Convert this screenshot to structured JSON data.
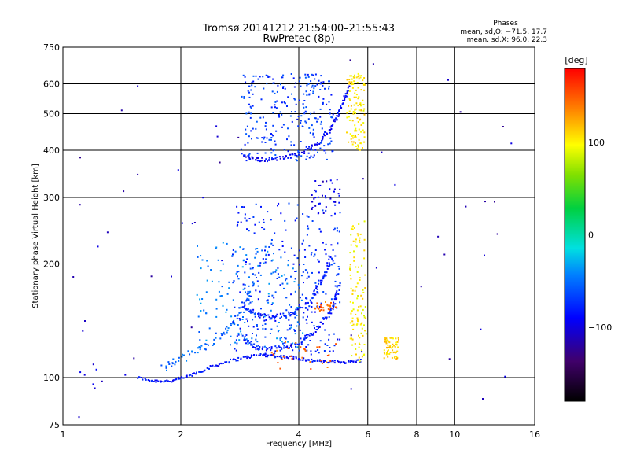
{
  "chart_data": {
    "type": "scatter",
    "title": "Tromsø 20141212 21:54:00–21:55:43",
    "subtitle": "RwPretec (8p)",
    "xlabel": "Frequency [MHz]",
    "ylabel": "Stationary phase Virtual Height [km]",
    "x_scale": "log",
    "y_scale": "log",
    "xlim": [
      1,
      16
    ],
    "ylim": [
      75,
      750
    ],
    "x_ticks": [
      1,
      2,
      4,
      6,
      8,
      10,
      16
    ],
    "y_ticks": [
      75,
      100,
      200,
      300,
      400,
      500,
      600,
      750
    ],
    "x_grid": [
      2,
      4,
      6,
      8,
      10
    ],
    "y_grid": [
      100,
      200,
      300,
      400,
      500,
      600
    ],
    "grid": true,
    "legend_title": "Phases",
    "legend_lines": [
      "mean, sd,O: −71.5, 17.7",
      "mean, sd,X:  96.0, 22.3"
    ],
    "colorbar": {
      "label": "[deg]",
      "range": [
        -180,
        180
      ],
      "ticks": [
        {
          "value": 100,
          "label": "100"
        },
        {
          "value": 0,
          "label": "0"
        },
        {
          "value": -100,
          "label": "−100"
        }
      ]
    },
    "traces": [
      {
        "kind": "curve",
        "phase": -85,
        "points": [
          [
            1.55,
            100
          ],
          [
            1.7,
            98
          ],
          [
            1.9,
            98
          ],
          [
            2.1,
            101
          ],
          [
            2.35,
            106
          ],
          [
            2.6,
            110
          ],
          [
            2.9,
            113
          ],
          [
            3.2,
            115
          ],
          [
            3.5,
            114
          ],
          [
            3.9,
            113
          ],
          [
            4.3,
            111
          ],
          [
            4.8,
            110
          ],
          [
            5.3,
            110
          ],
          [
            5.8,
            111
          ]
        ],
        "spread": 0.012
      },
      {
        "kind": "curve",
        "phase": -55,
        "points": [
          [
            1.8,
            106
          ],
          [
            2.0,
            112
          ],
          [
            2.3,
            121
          ],
          [
            2.6,
            133
          ],
          [
            2.8,
            145
          ],
          [
            2.95,
            160
          ],
          [
            3.05,
            180
          ]
        ],
        "spread": 0.03
      },
      {
        "kind": "curve",
        "phase": -80,
        "points": [
          [
            2.9,
            128
          ],
          [
            3.1,
            120
          ],
          [
            3.4,
            119
          ],
          [
            3.7,
            120
          ],
          [
            4.0,
            123
          ],
          [
            4.3,
            130
          ],
          [
            4.6,
            140
          ],
          [
            4.85,
            150
          ],
          [
            5.0,
            165
          ],
          [
            5.1,
            180
          ]
        ],
        "spread": 0.02
      },
      {
        "kind": "curve",
        "phase": -80,
        "points": [
          [
            2.9,
            155
          ],
          [
            3.1,
            147
          ],
          [
            3.4,
            145
          ],
          [
            3.7,
            146
          ],
          [
            4.0,
            150
          ],
          [
            4.3,
            160
          ],
          [
            4.5,
            175
          ],
          [
            4.7,
            190
          ],
          [
            4.85,
            210
          ]
        ],
        "spread": 0.02
      },
      {
        "kind": "curve",
        "phase": -90,
        "points": [
          [
            2.9,
            390
          ],
          [
            3.1,
            378
          ],
          [
            3.4,
            378
          ],
          [
            3.8,
            385
          ],
          [
            4.2,
            400
          ],
          [
            4.5,
            420
          ],
          [
            4.8,
            450
          ],
          [
            5.0,
            490
          ],
          [
            5.2,
            540
          ],
          [
            5.4,
            600
          ]
        ],
        "spread": 0.015
      },
      {
        "kind": "cloud",
        "phase": -70,
        "x": [
          2.85,
          4.9
        ],
        "y": [
          375,
          640
        ],
        "n": 260
      },
      {
        "kind": "cloud",
        "phase": 105,
        "x": [
          5.3,
          5.9
        ],
        "y": [
          400,
          640
        ],
        "n": 120
      },
      {
        "kind": "cloud",
        "phase": 100,
        "x": [
          5.4,
          5.95
        ],
        "y": [
          110,
          260
        ],
        "n": 110
      },
      {
        "kind": "cloud",
        "phase": -75,
        "x": [
          2.7,
          5.1
        ],
        "y": [
          115,
          290
        ],
        "n": 300
      },
      {
        "kind": "cloud",
        "phase": -45,
        "x": [
          2.2,
          4.1
        ],
        "y": [
          120,
          230
        ],
        "n": 160
      },
      {
        "kind": "cloud",
        "phase": 110,
        "x": [
          6.6,
          7.2
        ],
        "y": [
          112,
          128
        ],
        "n": 60
      },
      {
        "kind": "cloud",
        "phase": 145,
        "x": [
          4.4,
          5.0
        ],
        "y": [
          150,
          160
        ],
        "n": 25
      },
      {
        "kind": "cloud",
        "phase": 145,
        "x": [
          3.4,
          5.0
        ],
        "y": [
          105,
          125
        ],
        "n": 30
      },
      {
        "kind": "cloud",
        "phase": -95,
        "x": [
          4.3,
          5.1
        ],
        "y": [
          270,
          340
        ],
        "n": 35
      },
      {
        "kind": "cloud",
        "phase": -100,
        "x": [
          1.05,
          1.3
        ],
        "y": [
          95,
          110
        ],
        "n": 6
      },
      {
        "kind": "sparse",
        "phase": -110,
        "x": [
          1.0,
          14.0
        ],
        "y": [
          78,
          700
        ],
        "n": 60
      }
    ]
  }
}
